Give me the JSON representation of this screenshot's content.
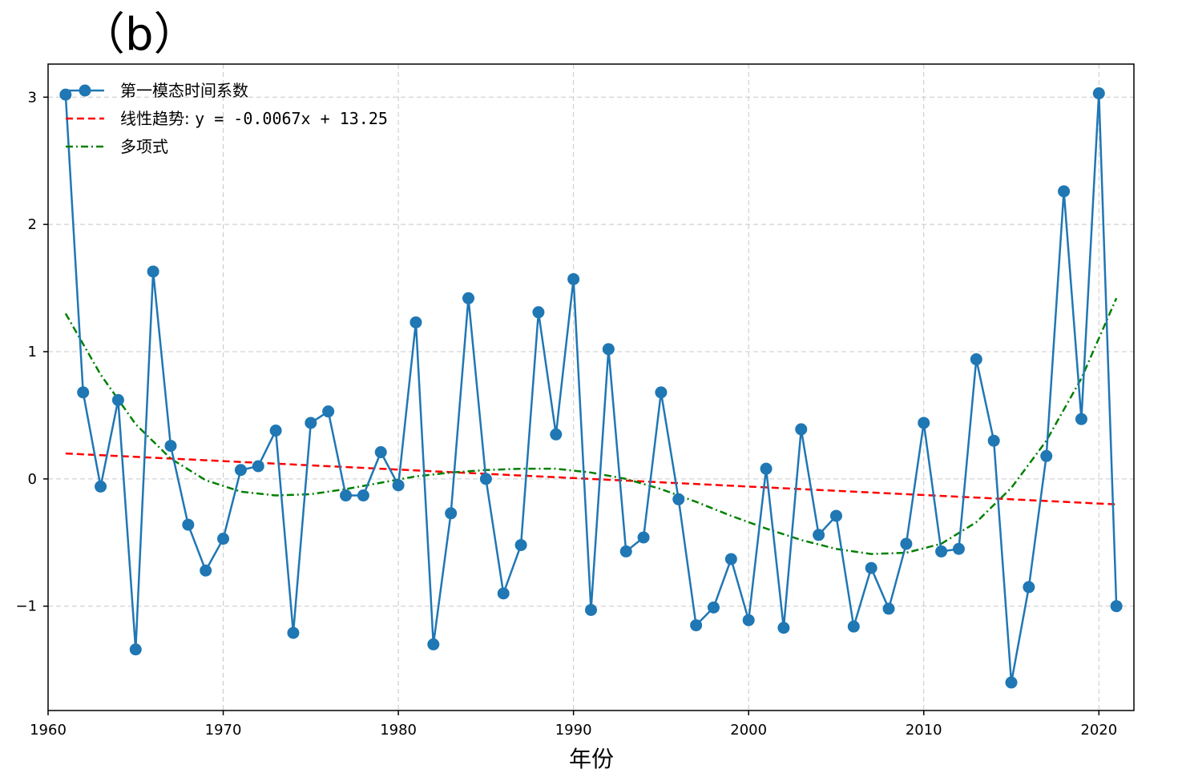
{
  "chart_data": {
    "type": "line",
    "panel_label": "（b）",
    "xlabel": "年份",
    "ylabel": "",
    "xlim": [
      1960,
      2022
    ],
    "ylim": [
      -1.82,
      3.26
    ],
    "xticks": [
      1960,
      1970,
      1980,
      1990,
      2000,
      2010,
      2020
    ],
    "yticks": [
      -1,
      0,
      1,
      2,
      3
    ],
    "ytick_labels": [
      "−1",
      "0",
      "1",
      "2",
      "3"
    ],
    "grid": true,
    "legend_position": "top-left",
    "series": [
      {
        "name": "第一模态时间系数",
        "kind": "line-marker",
        "color": "#1f77b4",
        "x": [
          1961,
          1962,
          1963,
          1964,
          1965,
          1966,
          1967,
          1968,
          1969,
          1970,
          1971,
          1972,
          1973,
          1974,
          1975,
          1976,
          1977,
          1978,
          1979,
          1980,
          1981,
          1982,
          1983,
          1984,
          1985,
          1986,
          1987,
          1988,
          1989,
          1990,
          1991,
          1992,
          1993,
          1994,
          1995,
          1996,
          1997,
          1998,
          1999,
          2000,
          2001,
          2002,
          2003,
          2004,
          2005,
          2006,
          2007,
          2008,
          2009,
          2010,
          2011,
          2012,
          2013,
          2014,
          2015,
          2016,
          2017,
          2018,
          2019,
          2020,
          2021
        ],
        "values": [
          3.02,
          0.68,
          -0.06,
          0.62,
          -1.34,
          1.63,
          0.26,
          -0.36,
          -0.72,
          -0.47,
          0.07,
          0.1,
          0.38,
          -1.21,
          0.44,
          0.53,
          -0.13,
          -0.13,
          0.21,
          -0.05,
          1.23,
          -1.3,
          -0.27,
          1.42,
          0.0,
          -0.9,
          -0.52,
          1.31,
          0.35,
          1.57,
          -1.03,
          1.02,
          -0.57,
          -0.46,
          0.68,
          -0.16,
          -1.15,
          -1.01,
          -0.63,
          -1.11,
          0.08,
          -1.17,
          0.39,
          -0.44,
          -0.29,
          -1.16,
          -0.7,
          -1.02,
          -0.51,
          0.44,
          -0.57,
          -0.55,
          0.94,
          0.3,
          -1.6,
          -0.85,
          0.18,
          2.26,
          0.47,
          3.03,
          -1.0
        ]
      },
      {
        "name": "线性趋势",
        "equation": "y = -0.0067x + 13.25",
        "kind": "dashed",
        "color": "#ff0000",
        "x": [
          1961,
          2021
        ],
        "values": [
          0.2,
          -0.2
        ]
      },
      {
        "name": "多项式",
        "kind": "dash-dot",
        "color": "#008000",
        "x": [
          1961,
          1963,
          1965,
          1967,
          1969,
          1971,
          1973,
          1975,
          1977,
          1979,
          1981,
          1983,
          1985,
          1987,
          1989,
          1991,
          1993,
          1995,
          1997,
          1999,
          2001,
          2003,
          2005,
          2007,
          2009,
          2011,
          2013,
          2015,
          2017,
          2019,
          2021
        ],
        "values": [
          1.3,
          0.82,
          0.43,
          0.16,
          -0.01,
          -0.1,
          -0.13,
          -0.12,
          -0.08,
          -0.03,
          0.02,
          0.05,
          0.07,
          0.08,
          0.08,
          0.05,
          0.0,
          -0.08,
          -0.18,
          -0.29,
          -0.39,
          -0.48,
          -0.55,
          -0.59,
          -0.58,
          -0.51,
          -0.34,
          -0.07,
          0.3,
          0.79,
          1.42
        ]
      }
    ]
  },
  "legend": {
    "item1": "第一模态时间系数",
    "item2_prefix": "线性趋势: ",
    "item2_equation": "y = -0.0067x + 13.25",
    "item3": "多项式"
  }
}
